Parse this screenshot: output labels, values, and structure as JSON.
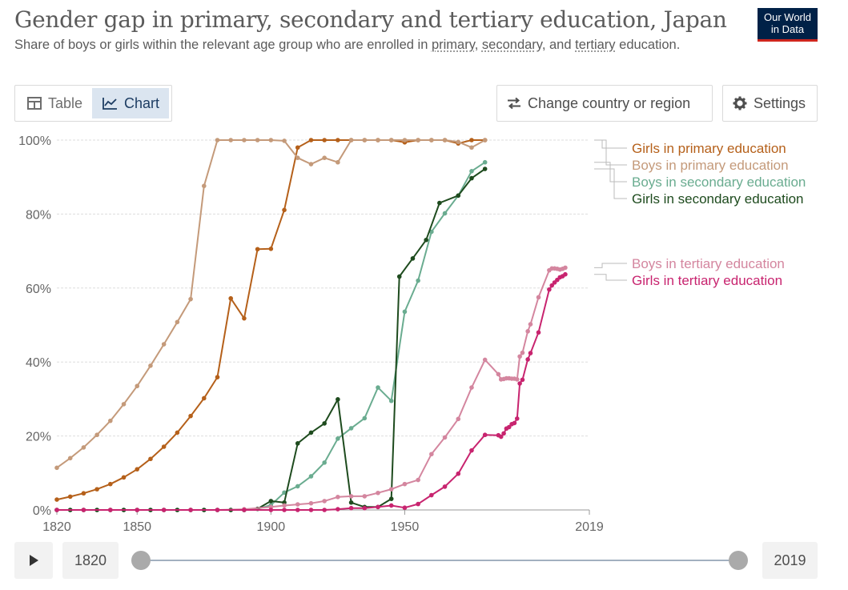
{
  "header": {
    "title": "Gender gap in primary, secondary and tertiary education, Japan",
    "subtitle_pre": "Share of boys or girls within the relevant age group who are enrolled in ",
    "subtitle_link1": "primary",
    "subtitle_sep1": ", ",
    "subtitle_link2": "secondary",
    "subtitle_sep2": ", and ",
    "subtitle_link3": "tertiary",
    "subtitle_post": " education.",
    "logo_line1": "Our World",
    "logo_line2": "in Data"
  },
  "controls": {
    "tab_table": "Table",
    "tab_chart": "Chart",
    "change_region": "Change country or region",
    "settings": "Settings"
  },
  "timeline": {
    "start_year": "1820",
    "end_year": "2019"
  },
  "chart_data": {
    "type": "line",
    "xlim": [
      1820,
      2019
    ],
    "ylim": [
      0,
      100
    ],
    "y_ticks": [
      0,
      20,
      40,
      60,
      80,
      100
    ],
    "y_tick_labels": [
      "0%",
      "20%",
      "40%",
      "60%",
      "80%",
      "100%"
    ],
    "x_tick_labels": [
      "1820",
      "1850",
      "1900",
      "1950",
      "2019"
    ],
    "x_tick_values": [
      1820,
      1850,
      1900,
      1950,
      2019
    ],
    "grid": true,
    "legend_position": "right",
    "series": [
      {
        "name": "Girls in primary education",
        "color": "#b5601a",
        "points": [
          [
            1820,
            2.8
          ],
          [
            1825,
            3.6
          ],
          [
            1830,
            4.5
          ],
          [
            1835,
            5.6
          ],
          [
            1840,
            7.0
          ],
          [
            1845,
            8.8
          ],
          [
            1850,
            11.0
          ],
          [
            1855,
            13.8
          ],
          [
            1860,
            17.1
          ],
          [
            1865,
            20.9
          ],
          [
            1870,
            25.4
          ],
          [
            1875,
            30.2
          ],
          [
            1880,
            35.9
          ],
          [
            1885,
            57.2
          ],
          [
            1890,
            51.8
          ],
          [
            1895,
            70.5
          ],
          [
            1900,
            70.6
          ],
          [
            1905,
            81.1
          ],
          [
            1910,
            98.0
          ],
          [
            1915,
            100
          ],
          [
            1920,
            100
          ],
          [
            1925,
            100
          ],
          [
            1930,
            100
          ],
          [
            1935,
            100
          ],
          [
            1940,
            100
          ],
          [
            1945,
            100
          ],
          [
            1950,
            99.4
          ],
          [
            1955,
            100
          ],
          [
            1960,
            100
          ],
          [
            1965,
            100
          ],
          [
            1970,
            99.1
          ],
          [
            1975,
            100
          ],
          [
            1980,
            100
          ]
        ]
      },
      {
        "name": "Boys in primary education",
        "color": "#c49a7a",
        "points": [
          [
            1820,
            11.4
          ],
          [
            1825,
            14.0
          ],
          [
            1830,
            16.9
          ],
          [
            1835,
            20.3
          ],
          [
            1840,
            24.1
          ],
          [
            1845,
            28.6
          ],
          [
            1850,
            33.5
          ],
          [
            1855,
            39.0
          ],
          [
            1860,
            44.8
          ],
          [
            1865,
            50.8
          ],
          [
            1870,
            57.0
          ],
          [
            1875,
            87.6
          ],
          [
            1880,
            100
          ],
          [
            1885,
            100
          ],
          [
            1890,
            100
          ],
          [
            1895,
            100
          ],
          [
            1900,
            100
          ],
          [
            1905,
            99.8
          ],
          [
            1910,
            95.2
          ],
          [
            1915,
            93.5
          ],
          [
            1920,
            95.2
          ],
          [
            1925,
            94.0
          ],
          [
            1930,
            100
          ],
          [
            1935,
            100
          ],
          [
            1940,
            100
          ],
          [
            1945,
            100
          ],
          [
            1950,
            100
          ],
          [
            1955,
            100
          ],
          [
            1960,
            100
          ],
          [
            1965,
            100
          ],
          [
            1970,
            99.5
          ],
          [
            1975,
            98.0
          ],
          [
            1980,
            100
          ]
        ]
      },
      {
        "name": "Boys in secondary education",
        "color": "#6aac90",
        "points": [
          [
            1820,
            0
          ],
          [
            1825,
            0
          ],
          [
            1830,
            0
          ],
          [
            1835,
            0
          ],
          [
            1840,
            0
          ],
          [
            1845,
            0
          ],
          [
            1850,
            0
          ],
          [
            1855,
            0
          ],
          [
            1860,
            0
          ],
          [
            1865,
            0
          ],
          [
            1870,
            0
          ],
          [
            1875,
            0
          ],
          [
            1880,
            0
          ],
          [
            1885,
            0
          ],
          [
            1890,
            0
          ],
          [
            1895,
            0.3
          ],
          [
            1900,
            1.3
          ],
          [
            1905,
            4.7
          ],
          [
            1910,
            6.4
          ],
          [
            1915,
            9.1
          ],
          [
            1920,
            12.8
          ],
          [
            1925,
            19.3
          ],
          [
            1930,
            22.1
          ],
          [
            1935,
            24.8
          ],
          [
            1940,
            33.1
          ],
          [
            1945,
            29.5
          ],
          [
            1950,
            53.6
          ],
          [
            1955,
            62.0
          ],
          [
            1960,
            75.2
          ],
          [
            1965,
            80.2
          ],
          [
            1970,
            85.0
          ],
          [
            1975,
            91.6
          ],
          [
            1980,
            94.0
          ]
        ]
      },
      {
        "name": "Girls in secondary education",
        "color": "#1e4b1e",
        "points": [
          [
            1820,
            0
          ],
          [
            1825,
            0
          ],
          [
            1830,
            0
          ],
          [
            1835,
            0
          ],
          [
            1840,
            0
          ],
          [
            1845,
            0
          ],
          [
            1850,
            0
          ],
          [
            1855,
            0
          ],
          [
            1860,
            0
          ],
          [
            1865,
            0
          ],
          [
            1870,
            0
          ],
          [
            1875,
            0
          ],
          [
            1880,
            0
          ],
          [
            1885,
            0
          ],
          [
            1890,
            0
          ],
          [
            1895,
            0.3
          ],
          [
            1900,
            2.4
          ],
          [
            1905,
            2.0
          ],
          [
            1910,
            18.0
          ],
          [
            1915,
            20.9
          ],
          [
            1920,
            23.4
          ],
          [
            1925,
            29.9
          ],
          [
            1930,
            2.0
          ],
          [
            1935,
            0.8
          ],
          [
            1940,
            0.8
          ],
          [
            1945,
            3.0
          ],
          [
            1948,
            63.1
          ],
          [
            1953,
            68.0
          ],
          [
            1958,
            73.0
          ],
          [
            1963,
            83.0
          ],
          [
            1970,
            85.0
          ],
          [
            1975,
            89.7
          ],
          [
            1980,
            92.2
          ]
        ]
      },
      {
        "name": "Boys in tertiary education",
        "color": "#d4869f",
        "points": [
          [
            1820,
            0
          ],
          [
            1830,
            0
          ],
          [
            1840,
            0
          ],
          [
            1850,
            0
          ],
          [
            1860,
            0
          ],
          [
            1870,
            0
          ],
          [
            1880,
            0
          ],
          [
            1890,
            0.2
          ],
          [
            1900,
            0.8
          ],
          [
            1905,
            1.2
          ],
          [
            1910,
            1.5
          ],
          [
            1915,
            1.8
          ],
          [
            1920,
            2.4
          ],
          [
            1925,
            3.5
          ],
          [
            1930,
            3.7
          ],
          [
            1935,
            3.7
          ],
          [
            1940,
            4.6
          ],
          [
            1945,
            5.6
          ],
          [
            1950,
            7.0
          ],
          [
            1955,
            8.1
          ],
          [
            1960,
            15.1
          ],
          [
            1965,
            19.6
          ],
          [
            1970,
            24.6
          ],
          [
            1975,
            33.1
          ],
          [
            1980,
            40.6
          ],
          [
            1985,
            36.7
          ],
          [
            1986,
            35.3
          ],
          [
            1987,
            35.4
          ],
          [
            1988,
            35.6
          ],
          [
            1989,
            35.6
          ],
          [
            1990,
            35.5
          ],
          [
            1991,
            35.5
          ],
          [
            1992,
            35.3
          ],
          [
            1993,
            41.5
          ],
          [
            1994,
            42.5
          ],
          [
            1996,
            48.3
          ],
          [
            1997,
            50.2
          ],
          [
            2000,
            57.5
          ],
          [
            2004,
            64.8
          ],
          [
            2005,
            65.3
          ],
          [
            2006,
            65.3
          ],
          [
            2007,
            65.2
          ],
          [
            2008,
            65.0
          ],
          [
            2009,
            65.2
          ],
          [
            2010,
            65.5
          ]
        ]
      },
      {
        "name": "Girls in tertiary education",
        "color": "#c8246f",
        "points": [
          [
            1820,
            0
          ],
          [
            1830,
            0
          ],
          [
            1840,
            0
          ],
          [
            1850,
            0
          ],
          [
            1860,
            0
          ],
          [
            1870,
            0
          ],
          [
            1880,
            0
          ],
          [
            1890,
            0
          ],
          [
            1900,
            0
          ],
          [
            1905,
            0
          ],
          [
            1910,
            0
          ],
          [
            1915,
            0
          ],
          [
            1920,
            0
          ],
          [
            1925,
            0.2
          ],
          [
            1930,
            0.5
          ],
          [
            1935,
            0.5
          ],
          [
            1940,
            0.8
          ],
          [
            1945,
            1.2
          ],
          [
            1950,
            0.6
          ],
          [
            1955,
            1.6
          ],
          [
            1960,
            4.0
          ],
          [
            1965,
            6.3
          ],
          [
            1970,
            9.8
          ],
          [
            1975,
            16.1
          ],
          [
            1980,
            20.3
          ],
          [
            1985,
            20.2
          ],
          [
            1986,
            19.8
          ],
          [
            1987,
            20.7
          ],
          [
            1988,
            22.0
          ],
          [
            1989,
            22.4
          ],
          [
            1990,
            23.2
          ],
          [
            1991,
            23.5
          ],
          [
            1992,
            24.7
          ],
          [
            1993,
            34.2
          ],
          [
            1994,
            35.2
          ],
          [
            1996,
            40.7
          ],
          [
            1997,
            42.4
          ],
          [
            2000,
            48.0
          ],
          [
            2004,
            59.6
          ],
          [
            2005,
            60.7
          ],
          [
            2006,
            61.5
          ],
          [
            2007,
            62.2
          ],
          [
            2008,
            62.9
          ],
          [
            2009,
            63.2
          ],
          [
            2010,
            63.7
          ]
        ]
      }
    ]
  }
}
